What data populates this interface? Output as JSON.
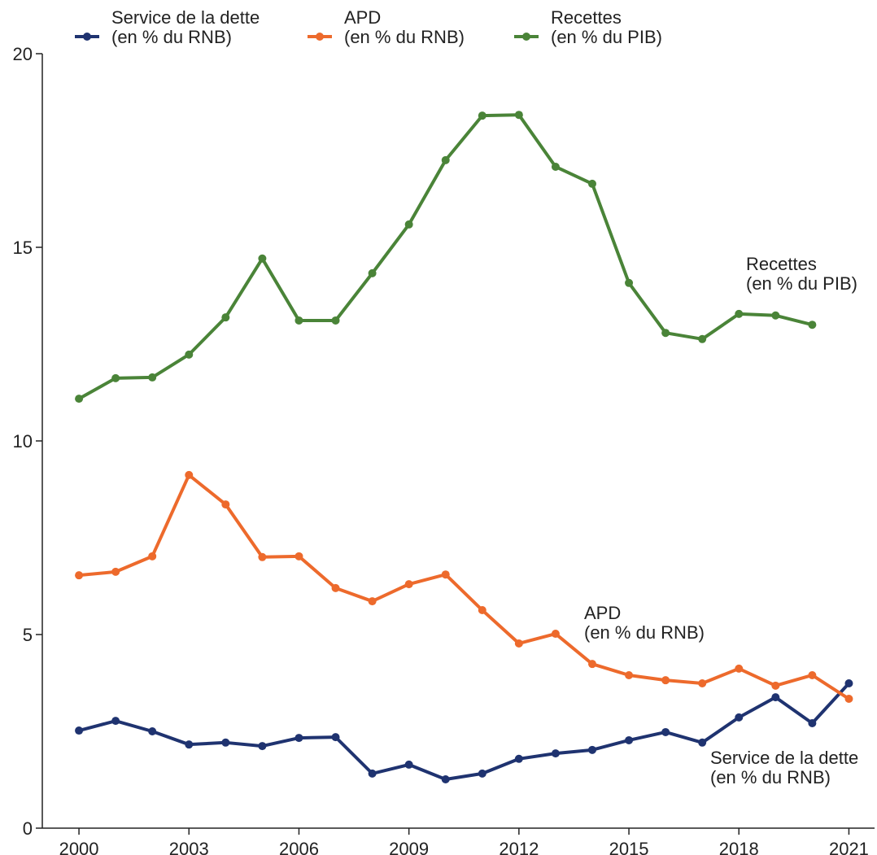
{
  "chart_data": {
    "type": "line",
    "x": [
      2000,
      2001,
      2002,
      2003,
      2004,
      2005,
      2006,
      2007,
      2008,
      2009,
      2010,
      2011,
      2012,
      2013,
      2014,
      2015,
      2016,
      2017,
      2018,
      2019,
      2020,
      2021
    ],
    "series": [
      {
        "name": "Service de la dette\n(en % du RNB)",
        "color": "#1f3370",
        "values": [
          2.52,
          2.77,
          2.5,
          2.16,
          2.21,
          2.12,
          2.33,
          2.35,
          1.41,
          1.64,
          1.26,
          1.41,
          1.79,
          1.93,
          2.02,
          2.27,
          2.48,
          2.21,
          2.86,
          3.38,
          2.71,
          3.74
        ]
      },
      {
        "name": "APD\n(en % du RNB)",
        "color": "#ed6a2c",
        "values": [
          6.53,
          6.62,
          7.02,
          9.12,
          8.36,
          7.0,
          7.02,
          6.2,
          5.86,
          6.3,
          6.55,
          5.63,
          4.77,
          5.02,
          4.24,
          3.95,
          3.82,
          3.74,
          4.12,
          3.68,
          3.95,
          3.34
        ]
      },
      {
        "name": "Recettes\n(en % du PIB)",
        "color": "#4a8438",
        "values": [
          11.09,
          11.62,
          11.64,
          12.23,
          13.19,
          14.71,
          13.11,
          13.11,
          14.33,
          15.59,
          17.25,
          18.4,
          18.42,
          17.08,
          16.64,
          14.08,
          12.79,
          12.63,
          13.28,
          13.24,
          13.0,
          null
        ]
      }
    ],
    "annotations": [
      "Recettes\n(en % du PIB)",
      "APD\n(en % du RNB)",
      "Service de la dette\n(en % du RNB)"
    ],
    "xlim": [
      1999,
      2021.7
    ],
    "xticks": [
      2000,
      2003,
      2006,
      2009,
      2012,
      2015,
      2018,
      2021
    ],
    "ylim": [
      0,
      20
    ],
    "yticks": [
      0,
      5,
      10,
      15,
      20
    ],
    "grid": false
  }
}
